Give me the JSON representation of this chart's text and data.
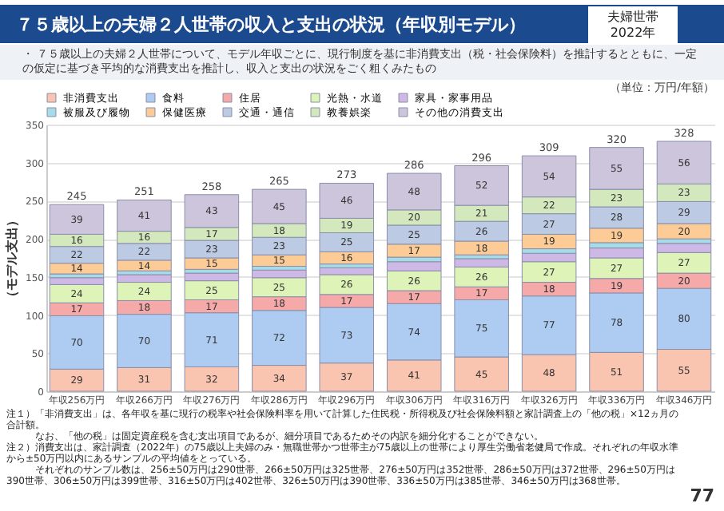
{
  "chart_data": {
    "type": "bar",
    "title": "７５歳以上の夫婦２人世帯の収入と支出の状況（年収別モデル）",
    "subtitle": "・ ７５歳以上の夫婦２人世帯について、モデル年収ごとに、現行制度を基に非消費支出（税・社会保険料）を推計するとともに、一定の仮定に基づき平均的な消費支出を推計し、収入と支出の状況をごく粗くみたもの",
    "ylabel": "（モデル支出）",
    "annotations": [
      "夫婦世帯\n2022年",
      "（単位：万円/年額）",
      "注１）「非消費支出」は、各年収を基に現行の税率や社会保険料率を用いて計算した住民税・所得税及び社会保険料額と家計調査上の「他の税」×12ヵ月の合計額。",
      "　　　なお、「他の税」は固定資産税を含む支出項目であるが、細分項目であるためその内訳を細分化することができない。",
      "注２）消費支出は、家計調査（2022年）の75歳以上夫婦のみ・無職世帯かつ世帯主が75歳以上の世帯により厚生労働省老健局で作成。それぞれの年収水準から±50万円以内にあるサンプルの平均値をとっている。",
      "　　　それぞれのサンプル数は、256±50万円は290世帯、266±50万円は325世帯、276±50万円は352世帯、286±50万円は372世帯、296±50万円は390世帯、306±50万円は399世帯、316±50万円は402世帯、326±50万円は390世帯、336±50万円は385世帯、346±50万円は368世帯。",
      "77"
    ],
    "categories": [
      "年収256万円",
      "年収266万円",
      "年収276万円",
      "年収286万円",
      "年収296万円",
      "年収306万円",
      "年収316万円",
      "年収326万円",
      "年収336万円",
      "年収346万円"
    ],
    "stacked": true,
    "legend": "top",
    "ylim": [
      0,
      350
    ],
    "yticks": [
      0,
      50,
      100,
      150,
      200,
      250,
      300,
      350
    ],
    "grid": "y",
    "totals": [
      "245",
      "251",
      "258",
      "265",
      "273",
      "286",
      "296",
      "309",
      "320",
      "328"
    ],
    "series": [
      {
        "name": "非消費支出",
        "color": "#f9c4b0",
        "values": [
          29,
          31,
          32,
          34,
          37,
          41,
          45,
          48,
          51,
          55
        ],
        "value_labels": [
          "29",
          "31",
          "32",
          "34",
          "37",
          "41",
          "45",
          "48",
          "51",
          "55"
        ]
      },
      {
        "name": "食料",
        "color": "#aecbf2",
        "values": [
          70,
          70,
          71,
          72,
          73,
          74,
          75,
          77,
          78,
          80
        ],
        "value_labels": [
          "70",
          "70",
          "71",
          "72",
          "73",
          "74",
          "75",
          "77",
          "78",
          "80"
        ]
      },
      {
        "name": "住居",
        "color": "#f5a9a9",
        "values": [
          17,
          18,
          17,
          18,
          17,
          17,
          17,
          18,
          19,
          20
        ],
        "value_labels": [
          "17",
          "18",
          "17",
          "18",
          "17",
          "17",
          "17",
          "18",
          "19",
          "20"
        ]
      },
      {
        "name": "光熱・水道",
        "color": "#def3b8",
        "values": [
          24,
          24,
          25,
          25,
          26,
          26,
          26,
          27,
          27,
          27
        ],
        "value_labels": [
          "24",
          "24",
          "25",
          "25",
          "26",
          "26",
          "26",
          "27",
          "27",
          "27"
        ]
      },
      {
        "name": "家具・家事用品",
        "color": "#cdb8e6",
        "values": [
          9,
          10,
          10,
          10,
          9,
          12,
          11,
          11,
          13,
          12
        ],
        "value_labels": [
          null,
          null,
          null,
          null,
          null,
          null,
          null,
          null,
          null,
          null
        ]
      },
      {
        "name": "被服及び履物",
        "color": "#a6dcea",
        "values": [
          5,
          5,
          5,
          5,
          5,
          6,
          5,
          6,
          7,
          6
        ],
        "value_labels": [
          null,
          null,
          null,
          null,
          null,
          null,
          null,
          null,
          null,
          null
        ]
      },
      {
        "name": "保健医療",
        "color": "#fccb96",
        "values": [
          14,
          14,
          15,
          15,
          16,
          17,
          18,
          19,
          19,
          20
        ],
        "value_labels": [
          "14",
          "14",
          "15",
          "15",
          "16",
          "17",
          "18",
          "19",
          "19",
          "20"
        ]
      },
      {
        "name": "交通・通信",
        "color": "#bccbe3",
        "values": [
          22,
          22,
          23,
          23,
          25,
          25,
          26,
          27,
          28,
          29
        ],
        "value_labels": [
          "22",
          "22",
          "23",
          "23",
          "25",
          "25",
          "26",
          "27",
          "28",
          "29"
        ]
      },
      {
        "name": "教養娯楽",
        "color": "#d3e8bd",
        "values": [
          16,
          16,
          17,
          18,
          19,
          20,
          21,
          22,
          23,
          23
        ],
        "value_labels": [
          "16",
          "16",
          "17",
          "18",
          "19",
          "20",
          "21",
          "22",
          "23",
          "23"
        ]
      },
      {
        "name": "その他の消費支出",
        "color": "#cdc5dc",
        "values": [
          39,
          41,
          43,
          45,
          46,
          48,
          52,
          54,
          55,
          56
        ],
        "value_labels": [
          "39",
          "41",
          "43",
          "45",
          "46",
          "48",
          "52",
          "54",
          "55",
          "56"
        ]
      }
    ]
  }
}
